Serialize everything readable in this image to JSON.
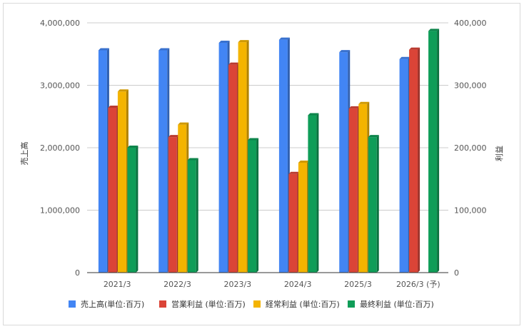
{
  "chart_data": {
    "type": "bar",
    "title": "",
    "categories": [
      "2021/3",
      "2022/3",
      "2023/3",
      "2024/3",
      "2025/3",
      "2026/3 (予)"
    ],
    "y_left": {
      "label": "売上高",
      "range": [
        0,
        4000000
      ],
      "ticks": [
        "0",
        "1,000,000",
        "2,000,000",
        "3,000,000",
        "4,000,000"
      ]
    },
    "y_right": {
      "label": "利益",
      "range": [
        0,
        400000
      ],
      "ticks": [
        "0",
        "100,000",
        "200,000",
        "300,000",
        "400,000"
      ]
    },
    "grid": true,
    "legend_position": "bottom",
    "series": [
      {
        "name": "売上高(単位:百万)",
        "axis": "left",
        "color": "#4285f4",
        "values": [
          3560000,
          3560000,
          3680000,
          3730000,
          3530000,
          3420000
        ]
      },
      {
        "name": "営業利益 (単位:百万)",
        "axis": "right",
        "color": "#db4437",
        "values": [
          264000,
          217000,
          333000,
          158000,
          263000,
          357000
        ]
      },
      {
        "name": "経常利益 (単位:百万)",
        "axis": "right",
        "color": "#f4b400",
        "values": [
          290000,
          237000,
          369000,
          176000,
          270000,
          null
        ]
      },
      {
        "name": "最終利益 (単位:百万)",
        "axis": "right",
        "color": "#0f9d58",
        "values": [
          200000,
          180000,
          212000,
          252000,
          217000,
          387000
        ]
      }
    ]
  }
}
